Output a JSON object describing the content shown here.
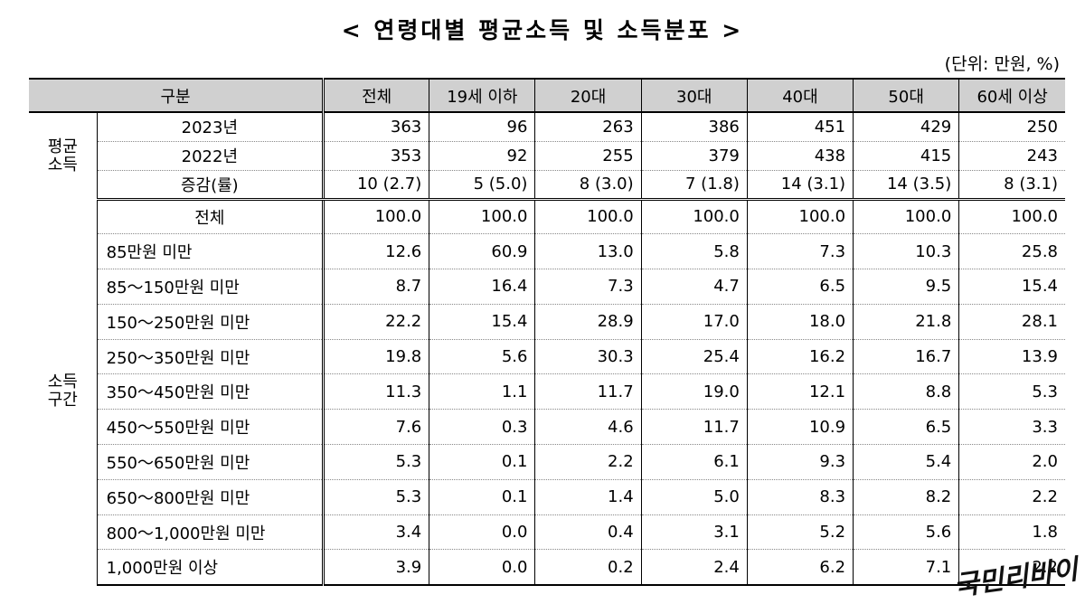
{
  "title": "< 연령대별 평균소득 및 소득분포 >",
  "unit_label": "(단위: 만원, %)",
  "header": {
    "category": "구분",
    "columns": [
      "전체",
      "19세 이하",
      "20대",
      "30대",
      "40대",
      "50대",
      "60세 이상"
    ]
  },
  "income_section": {
    "label_line1": "평균",
    "label_line2": "소득",
    "rows": [
      {
        "label": "2023년",
        "values": [
          "363",
          "96",
          "263",
          "386",
          "451",
          "429",
          "250"
        ]
      },
      {
        "label": "2022년",
        "values": [
          "353",
          "92",
          "255",
          "379",
          "438",
          "415",
          "243"
        ]
      },
      {
        "label": "증감(률)",
        "values": [
          "10 (2.7)",
          "5 (5.0)",
          "8 (3.0)",
          "7 (1.8)",
          "14 (3.1)",
          "14 (3.5)",
          "8 (3.1)"
        ]
      }
    ]
  },
  "distribution_section": {
    "label_line1": "소득",
    "label_line2": "구간",
    "rows": [
      {
        "label": "전체",
        "values": [
          "100.0",
          "100.0",
          "100.0",
          "100.0",
          "100.0",
          "100.0",
          "100.0"
        ]
      },
      {
        "label": "85만원 미만",
        "values": [
          "12.6",
          "60.9",
          "13.0",
          "5.8",
          "7.3",
          "10.3",
          "25.8"
        ]
      },
      {
        "label": "85～150만원 미만",
        "values": [
          "8.7",
          "16.4",
          "7.3",
          "4.7",
          "6.5",
          "9.5",
          "15.4"
        ]
      },
      {
        "label": "150～250만원 미만",
        "values": [
          "22.2",
          "15.4",
          "28.9",
          "17.0",
          "18.0",
          "21.8",
          "28.1"
        ]
      },
      {
        "label": "250～350만원 미만",
        "values": [
          "19.8",
          "5.6",
          "30.3",
          "25.4",
          "16.2",
          "16.7",
          "13.9"
        ]
      },
      {
        "label": "350～450만원 미만",
        "values": [
          "11.3",
          "1.1",
          "11.7",
          "19.0",
          "12.1",
          "8.8",
          "5.3"
        ]
      },
      {
        "label": "450～550만원 미만",
        "values": [
          "7.6",
          "0.3",
          "4.6",
          "11.7",
          "10.9",
          "6.5",
          "3.3"
        ]
      },
      {
        "label": "550～650만원 미만",
        "values": [
          "5.3",
          "0.1",
          "2.2",
          "6.1",
          "9.3",
          "5.4",
          "2.0"
        ]
      },
      {
        "label": "650～800만원 미만",
        "values": [
          "5.3",
          "0.1",
          "1.4",
          "5.0",
          "8.3",
          "8.2",
          "2.2"
        ]
      },
      {
        "label": "800～1,000만원 미만",
        "values": [
          "3.4",
          "0.0",
          "0.4",
          "3.1",
          "5.2",
          "5.6",
          "1.8"
        ]
      },
      {
        "label": "1,000만원 이상",
        "values": [
          "3.9",
          "0.0",
          "0.2",
          "2.4",
          "6.2",
          "7.1",
          "2.2"
        ]
      }
    ]
  },
  "watermark": "국민리바이"
}
